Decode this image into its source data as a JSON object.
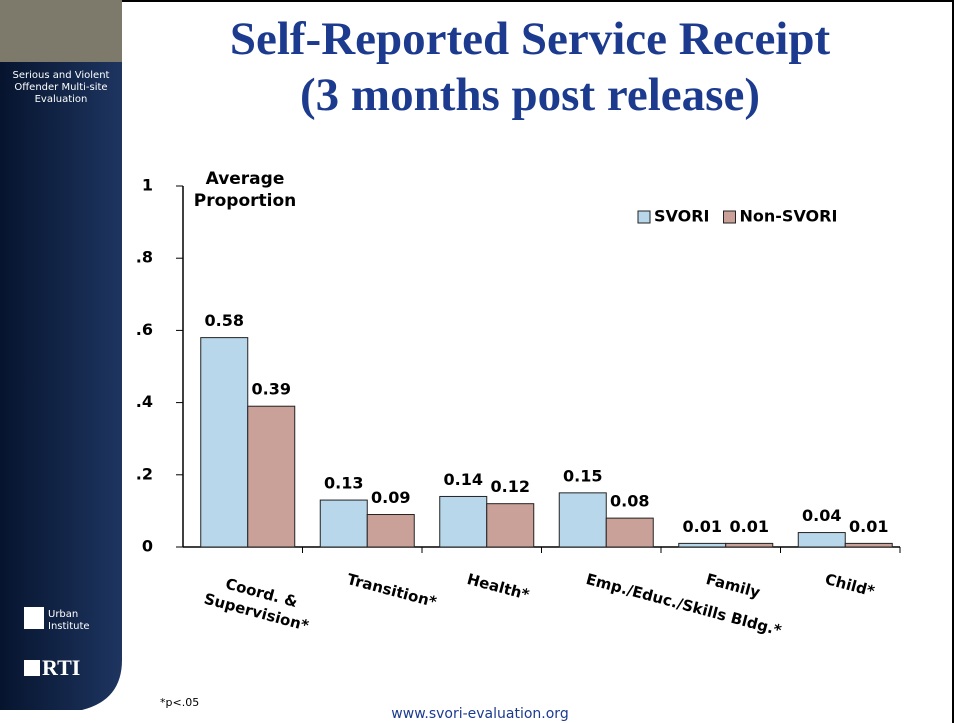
{
  "sidebar": {
    "program": "Serious and Violent Offender Multi-site Evaluation",
    "logo1": "Urban Institute",
    "logo2": "RTI"
  },
  "chart_data": {
    "type": "bar",
    "title": "Self-Reported Service Receipt",
    "subtitle": "(3 months post release)",
    "y_label": "Average Proportion",
    "categories": [
      "Coord. & Supervision*",
      "Transition*",
      "Health*",
      "Emp./Educ./Skills Bldg.*",
      "Family",
      "Child*"
    ],
    "series": [
      {
        "name": "SVORI",
        "color": "#b9d7ea",
        "values": [
          0.58,
          0.13,
          0.14,
          0.15,
          0.01,
          0.04
        ]
      },
      {
        "name": "Non-SVORI",
        "color": "#c9a198",
        "values": [
          0.39,
          0.09,
          0.12,
          0.08,
          0.01,
          0.01
        ]
      }
    ],
    "ylim": [
      0,
      1
    ],
    "yticks": [
      0,
      {
        "value": 0.2,
        "label": ".2"
      },
      {
        "value": 0.4,
        "label": ".4"
      },
      {
        "value": 0.6,
        "label": ".6"
      },
      {
        "value": 0.8,
        "label": ".8"
      },
      1
    ],
    "legend": "top-right",
    "grid": false
  },
  "footnote": "*p<.05",
  "url": "www.svori-evaluation.org"
}
